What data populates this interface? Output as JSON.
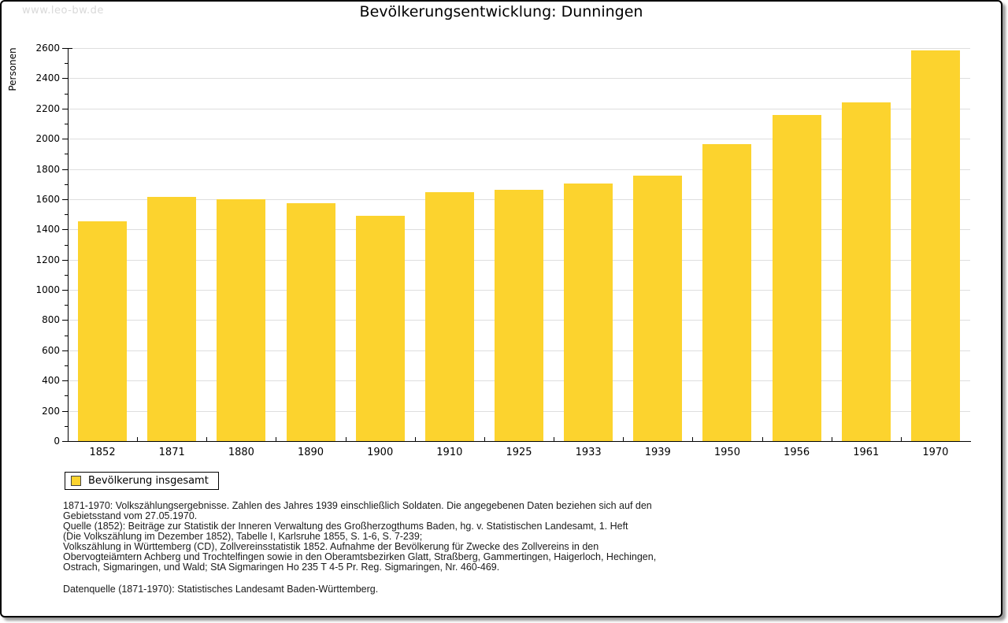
{
  "watermark": "www.leo-bw.de",
  "title": "Bevölkerungsentwicklung: Dunningen",
  "colors": {
    "bar": "#fcd32e",
    "grid": "#dedede",
    "axis": "#000000",
    "watermark": "#d9d9d9",
    "frame_border": "#000000",
    "frame_shadow": "#999999"
  },
  "chart_data": {
    "type": "bar",
    "title": "Bevölkerungsentwicklung: Dunningen",
    "xlabel": "",
    "ylabel": "Personen",
    "categories": [
      "1852",
      "1871",
      "1880",
      "1890",
      "1900",
      "1910",
      "1925",
      "1933",
      "1939",
      "1950",
      "1956",
      "1961",
      "1970"
    ],
    "series": [
      {
        "name": "Bevölkerung insgesamt",
        "values": [
          1455,
          1613,
          1600,
          1572,
          1488,
          1647,
          1663,
          1703,
          1756,
          1963,
          2157,
          2241,
          2586
        ]
      }
    ],
    "ylim": [
      0,
      2600
    ],
    "ytick_step": 200,
    "yminor_step": 100,
    "grid": true,
    "legend_position": "bottom-left"
  },
  "legend": {
    "items": [
      {
        "label": "Bevölkerung insgesamt",
        "color": "#fcd32e"
      }
    ]
  },
  "footnotes": {
    "lines": [
      "1871-1970: Volkszählungsergebnisse. Zahlen des Jahres 1939 einschließlich Soldaten. Die angegebenen Daten beziehen sich auf den",
      "Gebietsstand vom 27.05.1970.",
      "Quelle (1852): Beiträge zur Statistik der Inneren Verwaltung des Großherzogthums Baden, hg. v. Statistischen Landesamt, 1. Heft",
      "(Die Volkszählung im Dezember 1852), Tabelle I, Karlsruhe 1855, S. 1-6, S. 7-239;",
      "Volkszählung in Württemberg (CD), Zollvereinsstatistik 1852. Aufnahme der Bevölkerung für Zwecke des Zollvereins in den",
      "Obervogteiämtern Achberg und Trochtelfingen sowie in den Oberamtsbezirken Glatt, Straßberg, Gammertingen, Haigerloch, Hechingen,",
      "Ostrach, Sigmaringen, und Wald; StA Sigmaringen Ho 235 T 4-5 Pr. Reg. Sigmaringen, Nr. 460-469."
    ],
    "datasource": "Datenquelle (1871-1970): Statistisches Landesamt Baden-Württemberg."
  }
}
